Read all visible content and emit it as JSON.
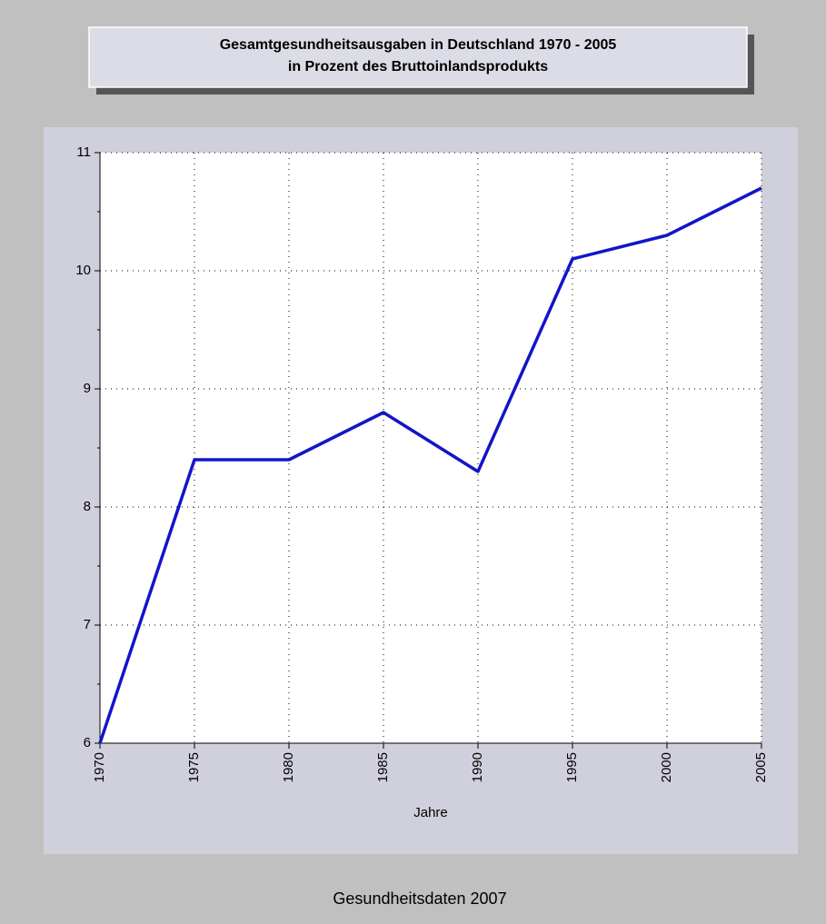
{
  "chart_data": {
    "type": "line",
    "title": "Gesamtgesundheitsausgaben in Deutschland 1970 - 2005",
    "subtitle": "in Prozent des Bruttoinlandsprodukts",
    "x_label": "Jahre",
    "caption": "Gesundheitsdaten 2007",
    "x": [
      1970,
      1975,
      1980,
      1985,
      1990,
      1995,
      2000,
      2005
    ],
    "values": [
      6.0,
      8.4,
      8.4,
      8.8,
      8.3,
      10.1,
      10.3,
      10.7
    ],
    "color": "#1414c8",
    "xlim": [
      1970,
      2005
    ],
    "xticks": [
      1970,
      1975,
      1980,
      1985,
      1990,
      1995,
      2000,
      2005
    ],
    "ylim": [
      6,
      11
    ],
    "yticks": [
      6,
      7,
      8,
      9,
      10,
      11
    ],
    "yminorticks": [
      6.5,
      7.5,
      8.5,
      9.5,
      10.5
    ],
    "grid": true
  }
}
